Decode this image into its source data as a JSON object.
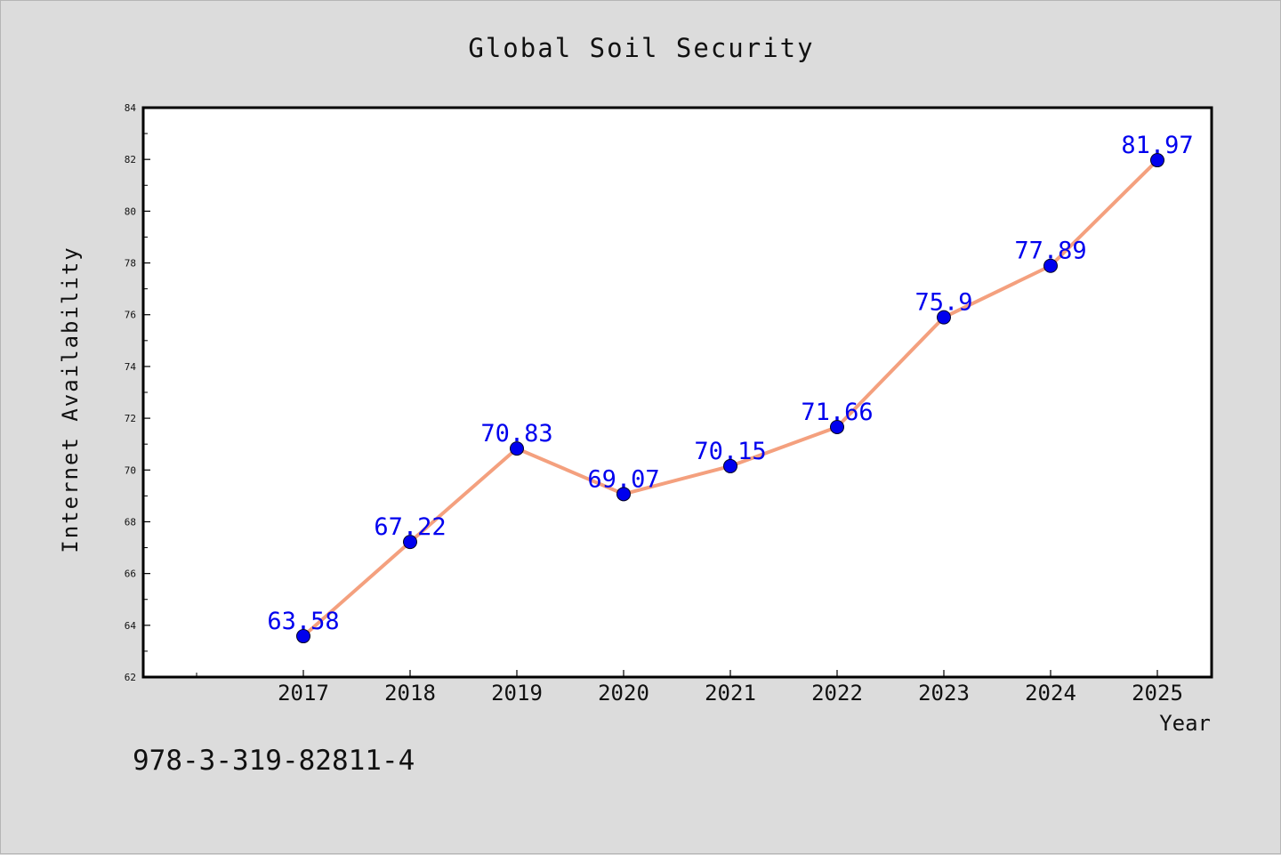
{
  "chart_data": {
    "type": "line",
    "title": "Global Soil Security",
    "xlabel": "Year",
    "ylabel": "Internet Availability",
    "categories": [
      "2017",
      "2018",
      "2019",
      "2020",
      "2021",
      "2022",
      "2023",
      "2024",
      "2025"
    ],
    "series": [
      {
        "values": [
          63.58,
          67.22,
          70.83,
          69.07,
          70.15,
          71.66,
          75.9,
          77.89,
          81.97
        ],
        "labels": [
          "63.58",
          "67.22",
          "70.83",
          "69.07",
          "70.15",
          "71.66",
          "75.9",
          "77.89",
          "81.97"
        ],
        "line_color": "#f4a07e",
        "marker_color": "#0000ee"
      }
    ],
    "ylim": [
      62,
      84
    ],
    "yticks": [
      "62",
      "64",
      "66",
      "68",
      "70",
      "72",
      "74",
      "76",
      "78",
      "80",
      "82",
      "84"
    ],
    "grid": false,
    "legend": false
  },
  "footer": {
    "isbn": "978-3-319-82811-4"
  }
}
